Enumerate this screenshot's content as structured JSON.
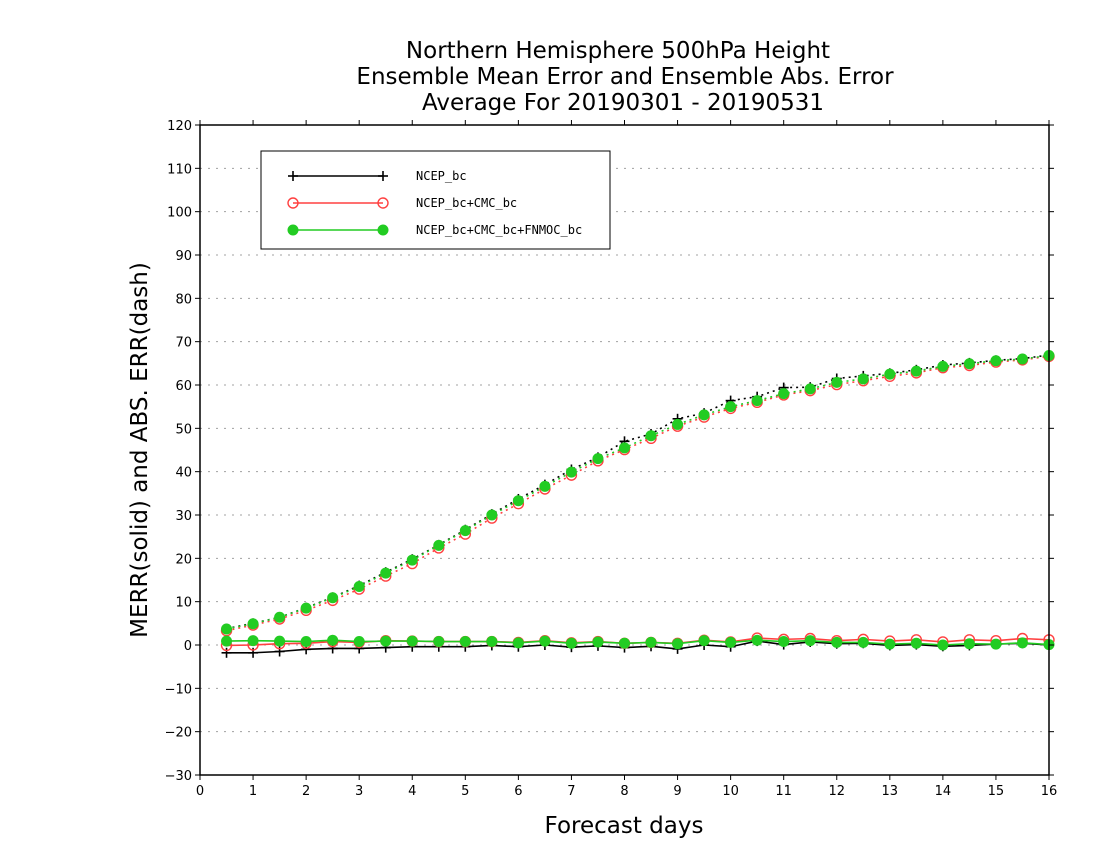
{
  "chart_data": {
    "type": "line",
    "title": [
      "Northern Hemisphere 500hPa Height",
      "Ensemble Mean Error and Ensemble Abs. Error",
      "Average For 20190301 - 20190531"
    ],
    "xlabel": "Forecast days",
    "ylabel": "MERR(solid) and ABS. ERR(dash)",
    "xlim": [
      0,
      16
    ],
    "ylim": [
      -30,
      120
    ],
    "xticks": [
      "0",
      "1",
      "2",
      "3",
      "4",
      "5",
      "6",
      "7",
      "8",
      "9",
      "10",
      "11",
      "12",
      "13",
      "14",
      "15",
      "16"
    ],
    "yticks": [
      "−30",
      "−20",
      "−10",
      "0",
      "10",
      "20",
      "30",
      "40",
      "50",
      "60",
      "70",
      "80",
      "90",
      "100",
      "110",
      "120"
    ],
    "grid": true,
    "legend_position": "top-left",
    "x": [
      0.5,
      1,
      1.5,
      2,
      2.5,
      3,
      3.5,
      4,
      4.5,
      5,
      5.5,
      6,
      6.5,
      7,
      7.5,
      8,
      8.5,
      9,
      9.5,
      10,
      10.5,
      11,
      11.5,
      12,
      12.5,
      13,
      13.5,
      14,
      14.5,
      15,
      15.5,
      16
    ],
    "series": [
      {
        "name": "NCEP_bc",
        "color": "#000000",
        "marker": "plus",
        "merr": [
          -1.8,
          -1.8,
          -1.5,
          -1.0,
          -0.8,
          -0.8,
          -0.6,
          -0.4,
          -0.4,
          -0.4,
          -0.1,
          -0.4,
          0.0,
          -0.5,
          -0.2,
          -0.6,
          -0.3,
          -0.9,
          0.0,
          -0.4,
          0.9,
          0.1,
          0.7,
          0.3,
          0.4,
          -0.1,
          0.1,
          -0.3,
          -0.1,
          0.2,
          0.4,
          0.0
        ],
        "abs_err": [
          3.8,
          5.0,
          6.4,
          8.6,
          11.0,
          13.7,
          16.8,
          19.8,
          23.1,
          26.6,
          30.2,
          33.7,
          37.0,
          40.5,
          43.3,
          47.0,
          48.7,
          52.2,
          53.5,
          56.4,
          57.3,
          59.4,
          59.5,
          61.5,
          62.1,
          62.7,
          63.5,
          64.6,
          65.1,
          65.7,
          66.1,
          66.9
        ]
      },
      {
        "name": "NCEP_bc+CMC_bc",
        "color": "#ff4040",
        "marker": "open-circle",
        "merr": [
          -0.1,
          0.0,
          0.3,
          0.4,
          0.8,
          0.6,
          1.0,
          0.9,
          0.8,
          0.8,
          0.8,
          0.6,
          1.0,
          0.5,
          0.8,
          0.4,
          0.6,
          0.4,
          1.1,
          0.7,
          1.6,
          1.3,
          1.5,
          1.0,
          1.3,
          0.9,
          1.2,
          0.7,
          1.2,
          1.0,
          1.5,
          1.2
        ],
        "abs_err": [
          3.3,
          4.6,
          6.0,
          8.0,
          10.3,
          12.9,
          15.9,
          18.8,
          22.4,
          25.6,
          29.3,
          32.6,
          36.0,
          39.2,
          42.5,
          45.1,
          47.7,
          50.5,
          52.6,
          54.6,
          56.0,
          57.7,
          58.7,
          60.1,
          61.0,
          62.0,
          62.8,
          64.0,
          64.5,
          65.3,
          65.8,
          66.6
        ]
      },
      {
        "name": "NCEP_bc+CMC_bc+FNMOC_bc",
        "color": "#22cc22",
        "marker": "filled-circle",
        "merr": [
          0.9,
          1.0,
          0.9,
          0.8,
          1.1,
          0.8,
          0.9,
          0.9,
          0.8,
          0.8,
          0.8,
          0.5,
          0.9,
          0.4,
          0.7,
          0.4,
          0.6,
          0.3,
          1.0,
          0.6,
          1.1,
          0.8,
          1.0,
          0.6,
          0.6,
          0.2,
          0.4,
          0.0,
          0.3,
          0.2,
          0.5,
          0.1
        ],
        "abs_err": [
          3.7,
          4.9,
          6.4,
          8.5,
          10.9,
          13.5,
          16.6,
          19.6,
          23.0,
          26.4,
          30.0,
          33.3,
          36.6,
          39.9,
          43.0,
          45.5,
          48.3,
          50.9,
          53.1,
          55.0,
          56.4,
          58.0,
          59.1,
          60.6,
          61.4,
          62.5,
          63.2,
          64.3,
          64.9,
          65.6,
          66.0,
          66.8
        ]
      }
    ]
  }
}
